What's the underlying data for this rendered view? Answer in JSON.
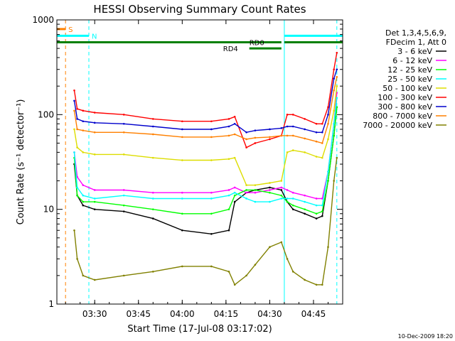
{
  "chart_data": {
    "type": "line",
    "title": "HESSI Observing Summary Count Rates",
    "xlabel": "Start Time (17-Jul-08 03:17:02)",
    "ylabel": "Count Rate (s⁻¹ detector⁻¹)",
    "y_scale": "log",
    "ylim": [
      1,
      1000
    ],
    "xlim": [
      "03:17:02",
      "04:55:00"
    ],
    "x_ticks": [
      "03:30",
      "03:45",
      "04:00",
      "04:15",
      "04:30",
      "04:45"
    ],
    "y_ticks": [
      "1",
      "10",
      "100",
      "1000"
    ],
    "grid": false,
    "legend_position": "right",
    "legend_header": [
      "Det 1,3,4,5,6,9,",
      "FDecim 1, Att 0"
    ],
    "series": [
      {
        "name": "3 - 6 keV",
        "color": "#000000",
        "x": [
          "03:23",
          "03:24",
          "03:26",
          "03:30",
          "03:40",
          "03:50",
          "04:00",
          "04:10",
          "04:16",
          "04:18",
          "04:22",
          "04:25",
          "04:30",
          "04:34",
          "04:36",
          "04:38",
          "04:42",
          "04:46",
          "04:48",
          "04:50",
          "04:52",
          "04:53"
        ],
        "y": [
          30,
          14,
          11,
          10,
          9.5,
          8,
          6,
          5.5,
          6,
          12,
          15,
          16,
          17,
          16,
          12,
          10,
          9,
          8,
          8.5,
          20,
          60,
          120
        ]
      },
      {
        "name": "6 - 12 keV",
        "color": "#ff00ff",
        "x": [
          "03:23",
          "03:24",
          "03:26",
          "03:30",
          "03:40",
          "03:50",
          "04:00",
          "04:10",
          "04:16",
          "04:18",
          "04:22",
          "04:25",
          "04:30",
          "04:34",
          "04:36",
          "04:38",
          "04:42",
          "04:46",
          "04:48",
          "04:50",
          "04:52",
          "04:53"
        ],
        "y": [
          40,
          22,
          18,
          16,
          16,
          15,
          15,
          15,
          16,
          17,
          15,
          15,
          16,
          17,
          16,
          15,
          14,
          13,
          13,
          25,
          80,
          170
        ]
      },
      {
        "name": "12 - 25 keV",
        "color": "#00ff00",
        "x": [
          "03:23",
          "03:24",
          "03:26",
          "03:30",
          "03:40",
          "03:50",
          "04:00",
          "04:10",
          "04:16",
          "04:18",
          "04:22",
          "04:25",
          "04:30",
          "04:34",
          "04:36",
          "04:38",
          "04:42",
          "04:46",
          "04:48",
          "04:50",
          "04:52",
          "04:53"
        ],
        "y": [
          35,
          14,
          12,
          12,
          11,
          10,
          9,
          9,
          10,
          14,
          16,
          16,
          15,
          14,
          12,
          11,
          10,
          9,
          9.5,
          20,
          60,
          120
        ]
      },
      {
        "name": "25 - 50 keV",
        "color": "#00ffff",
        "x": [
          "03:23",
          "03:24",
          "03:26",
          "03:30",
          "03:40",
          "03:50",
          "04:00",
          "04:10",
          "04:16",
          "04:18",
          "04:22",
          "04:25",
          "04:30",
          "04:34",
          "04:36",
          "04:38",
          "04:42",
          "04:46",
          "04:48",
          "04:50",
          "04:52",
          "04:53"
        ],
        "y": [
          40,
          17,
          14,
          13,
          14,
          13,
          13,
          13,
          14,
          15,
          13,
          12,
          12,
          13,
          13,
          13,
          12,
          11,
          11,
          25,
          80,
          150
        ]
      },
      {
        "name": "50 - 100 keV",
        "color": "#dddd00",
        "x": [
          "03:23",
          "03:24",
          "03:26",
          "03:30",
          "03:40",
          "03:50",
          "04:00",
          "04:10",
          "04:16",
          "04:18",
          "04:22",
          "04:25",
          "04:30",
          "04:34",
          "04:36",
          "04:38",
          "04:42",
          "04:46",
          "04:48",
          "04:50",
          "04:52",
          "04:53"
        ],
        "y": [
          70,
          45,
          40,
          38,
          38,
          35,
          33,
          33,
          34,
          35,
          18,
          18,
          19,
          20,
          40,
          42,
          40,
          36,
          35,
          55,
          110,
          200
        ]
      },
      {
        "name": "100 - 300 keV",
        "color": "#ff0000",
        "x": [
          "03:23",
          "03:24",
          "03:26",
          "03:30",
          "03:40",
          "03:50",
          "04:00",
          "04:10",
          "04:16",
          "04:18",
          "04:22",
          "04:25",
          "04:30",
          "04:34",
          "04:36",
          "04:38",
          "04:42",
          "04:46",
          "04:48",
          "04:50",
          "04:52",
          "04:53"
        ],
        "y": [
          180,
          115,
          110,
          105,
          100,
          90,
          85,
          85,
          90,
          95,
          45,
          50,
          55,
          60,
          100,
          100,
          90,
          80,
          80,
          120,
          300,
          450
        ]
      },
      {
        "name": "300 - 800 keV",
        "color": "#0000cc",
        "x": [
          "03:23",
          "03:24",
          "03:26",
          "03:30",
          "03:40",
          "03:50",
          "04:00",
          "04:10",
          "04:16",
          "04:18",
          "04:22",
          "04:25",
          "04:30",
          "04:34",
          "04:36",
          "04:38",
          "04:42",
          "04:46",
          "04:48",
          "04:50",
          "04:52",
          "04:53"
        ],
        "y": [
          140,
          90,
          85,
          82,
          80,
          75,
          70,
          70,
          75,
          80,
          65,
          68,
          70,
          72,
          75,
          75,
          70,
          65,
          65,
          100,
          240,
          300
        ]
      },
      {
        "name": "800 - 7000 keV",
        "color": "#ff8000",
        "x": [
          "03:23",
          "03:24",
          "03:26",
          "03:30",
          "03:40",
          "03:50",
          "04:00",
          "04:10",
          "04:16",
          "04:18",
          "04:22",
          "04:25",
          "04:30",
          "04:34",
          "04:36",
          "04:38",
          "04:42",
          "04:46",
          "04:48",
          "04:50",
          "04:52",
          "04:53"
        ],
        "y": [
          110,
          70,
          68,
          65,
          65,
          62,
          58,
          58,
          60,
          62,
          55,
          57,
          58,
          60,
          60,
          60,
          56,
          52,
          50,
          80,
          180,
          250
        ]
      },
      {
        "name": "7000 - 20000 keV",
        "color": "#808000",
        "x": [
          "03:23",
          "03:24",
          "03:26",
          "03:30",
          "03:40",
          "03:50",
          "04:00",
          "04:10",
          "04:16",
          "04:18",
          "04:22",
          "04:25",
          "04:30",
          "04:34",
          "04:36",
          "04:38",
          "04:42",
          "04:46",
          "04:48",
          "04:50",
          "04:52",
          "04:53"
        ],
        "y": [
          6,
          3,
          2,
          1.8,
          2,
          2.2,
          2.5,
          2.5,
          2.2,
          1.6,
          2,
          2.6,
          4,
          4.5,
          3,
          2.2,
          1.8,
          1.6,
          1.6,
          4,
          20,
          35
        ]
      }
    ],
    "state_bars": [
      {
        "label": "S",
        "color": "#ff8000",
        "x_start": "03:17:02",
        "x_end": "03:20",
        "level": 800
      },
      {
        "label": "N",
        "color": "#00ffff",
        "x_start": "03:17:02",
        "x_end": "03:28",
        "level": 680
      },
      {
        "label": "",
        "color": "#00ffff",
        "x_start": "04:35",
        "x_end": "04:55",
        "level": 680
      },
      {
        "label": "RD0",
        "color": "#008000",
        "x_start": "03:17:02",
        "x_end": "04:34",
        "level": 580
      },
      {
        "label": "",
        "color": "#008000",
        "x_start": "04:35",
        "x_end": "04:55",
        "level": 580
      },
      {
        "label": "RD4",
        "color": "#008000",
        "x_start": "04:23",
        "x_end": "04:34",
        "level": 500
      }
    ],
    "vertical_markers": [
      {
        "color": "#ff8000",
        "x": "03:20",
        "style": "dashed"
      },
      {
        "color": "#00ffff",
        "x": "03:17:02",
        "style": "solid"
      },
      {
        "color": "#00ffff",
        "x": "03:28",
        "style": "dashed"
      },
      {
        "color": "#00ffff",
        "x": "04:35",
        "style": "solid"
      },
      {
        "color": "#00ffff",
        "x": "04:53",
        "style": "dashed"
      }
    ]
  },
  "footer": {
    "timestamp": "10-Dec-2009 18:20"
  }
}
